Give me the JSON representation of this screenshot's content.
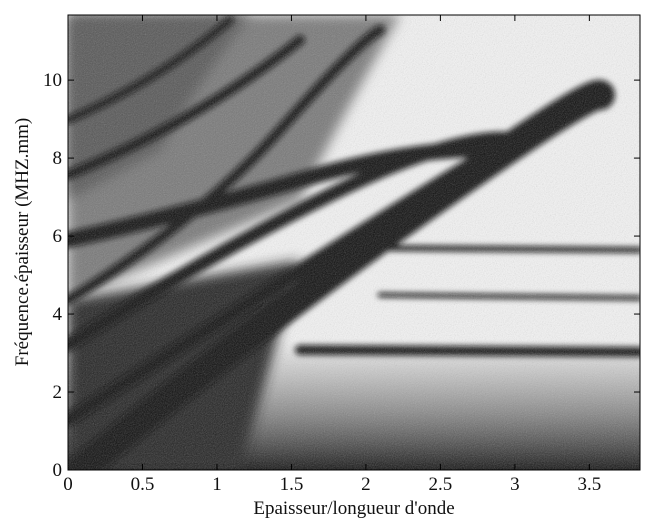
{
  "chart_data": {
    "type": "image",
    "xlabel": "Epaisseur/longueur d'onde",
    "ylabel": "Fréquence.épaisseur (MHZ.mm)",
    "xlim": [
      0,
      3.84
    ],
    "ylim": [
      0,
      11.67
    ],
    "xticks": [
      0,
      0.5,
      1,
      1.5,
      2,
      2.5,
      3,
      3.5
    ],
    "yticks": [
      0,
      2,
      4,
      6,
      8,
      10
    ]
  }
}
